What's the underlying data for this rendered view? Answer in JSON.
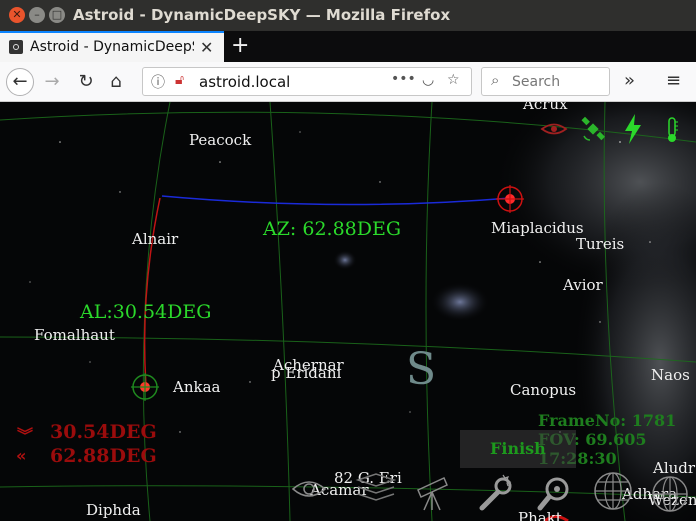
{
  "window": {
    "title": "Astroid - DynamicDeepSKY — Mozilla Firefox"
  },
  "tab": {
    "label": "Astroid - DynamicDeepSKY",
    "close": "✕",
    "new_tab": "+"
  },
  "nav": {
    "url": "astroid.local",
    "page_actions": "•••",
    "search_placeholder": "Search",
    "overflow": "»",
    "menu": "≡"
  },
  "stars": {
    "acrux": "Acrux",
    "peacock": "Peacock",
    "miaplacidus": "Miaplacidus",
    "tureis": "Tureis",
    "alnair": "Alnair",
    "avior": "Avior",
    "fomalhaut": "Fomalhaut",
    "achernar": "Achernar",
    "p_eridani": "p Eridani",
    "ankaa": "Ankaa",
    "canopus": "Canopus",
    "naos": "Naos",
    "g82_eri": "82 G. Eri",
    "acamar": "Acamar",
    "aludra": "Aludr",
    "adhara": "Adhara",
    "wezen": "Wezen",
    "diphda": "Diphda",
    "phakt": "Phakt"
  },
  "overlay": {
    "azimuth": "AZ: 62.88DEG",
    "altitude": "AL:30.54DEG",
    "cardinal": "S",
    "target_alt": "30.54DEG",
    "target_az": "62.88DEG",
    "frame": "FrameNo: 1781",
    "fov": "FOV: 69.605",
    "time": "17:28:30",
    "finish_label": "Finish"
  },
  "colors": {
    "accent_green": "#2bd92b",
    "alert_red": "#9a0c0c",
    "az_line": "#1a2ad9",
    "al_line": "#c01414"
  },
  "icons": [
    "eye-icon",
    "satellite-icon",
    "lightning-icon",
    "thermometer-icon",
    "eye-outline-icon",
    "layers-icon",
    "telescope-icon",
    "wrench-icon",
    "magnifier-icon",
    "globe-grid-icon"
  ]
}
